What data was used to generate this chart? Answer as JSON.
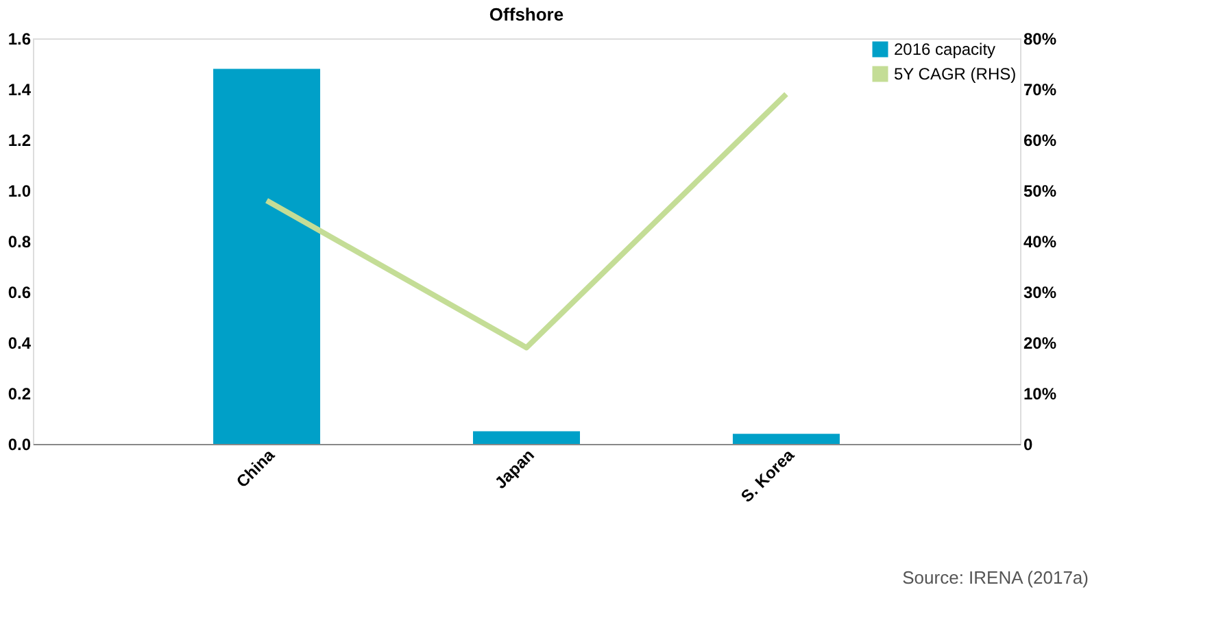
{
  "chart_data": {
    "type": "bar",
    "title": "Offshore",
    "categories": [
      "China",
      "Japan",
      "S. Korea"
    ],
    "series": [
      {
        "name": "2016 capacity",
        "color": "#00a0c8",
        "values": [
          1.48,
          0.05,
          0.04
        ]
      },
      {
        "name": "5Y CAGR (RHS)",
        "type": "line",
        "axis": "y2",
        "color": "#c4dd96",
        "values": [
          48,
          19,
          69
        ]
      }
    ],
    "ylim": [
      0,
      1.6
    ],
    "yticks": [
      {
        "value": 0,
        "label": "0.0"
      },
      {
        "value": 0.2,
        "label": "0.2"
      },
      {
        "value": 0.4,
        "label": "0.4"
      },
      {
        "value": 0.6,
        "label": "0.6"
      },
      {
        "value": 0.8,
        "label": "0.8"
      },
      {
        "value": 1.0,
        "label": "1.0"
      },
      {
        "value": 1.2,
        "label": "1.2"
      },
      {
        "value": 1.4,
        "label": "1.4"
      },
      {
        "value": 1.6,
        "label": "1.6"
      }
    ],
    "y2lim": [
      0,
      80
    ],
    "y2ticks": [
      {
        "value": 0,
        "label": "0"
      },
      {
        "value": 10,
        "label": "10%"
      },
      {
        "value": 20,
        "label": "20%"
      },
      {
        "value": 30,
        "label": "30%"
      },
      {
        "value": 40,
        "label": "40%"
      },
      {
        "value": 50,
        "label": "50%"
      },
      {
        "value": 60,
        "label": "60%"
      },
      {
        "value": 70,
        "label": "70%"
      },
      {
        "value": 80,
        "label": "80%"
      }
    ],
    "legend": "top right",
    "grid": false,
    "line_style": "solid",
    "marker": "none",
    "annotations": [
      "Source: IRENA (2017a)"
    ]
  }
}
